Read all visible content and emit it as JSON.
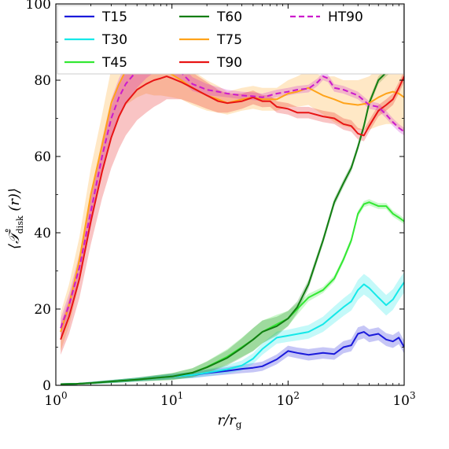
{
  "chart_data": {
    "type": "line",
    "xscale": "log",
    "xlim": [
      1,
      1000
    ],
    "ylim": [
      0,
      100
    ],
    "x_ticks": [
      1,
      10,
      100,
      1000
    ],
    "x_tick_labels": [
      {
        "base": "10",
        "exp": "0"
      },
      {
        "base": "10",
        "exp": "1"
      },
      {
        "base": "10",
        "exp": "2"
      },
      {
        "base": "10",
        "exp": "3"
      }
    ],
    "y_ticks": [
      0,
      20,
      40,
      60,
      80,
      100
    ],
    "y_tick_labels": [
      "0",
      "20",
      "40",
      "60",
      "80",
      "100"
    ],
    "xlabel": {
      "main": "r/r",
      "sub": "g"
    },
    "ylabel": {
      "main": "⟨𝒯",
      "sup": "°",
      "sub": "disk",
      "tail": " (r)⟩"
    },
    "legend_position": "top",
    "grid": false,
    "series": [
      {
        "name": "T15",
        "color": "#1a1adb",
        "dash": false,
        "band": true,
        "x": [
          1.1,
          1.5,
          2,
          3,
          5,
          7,
          10,
          15,
          20,
          30,
          40,
          50,
          60,
          80,
          100,
          120,
          150,
          200,
          250,
          300,
          350,
          400,
          450,
          500,
          600,
          700,
          800,
          900,
          1000
        ],
        "y": [
          0.3,
          0.4,
          0.6,
          1.0,
          1.5,
          1.9,
          2.3,
          2.7,
          3.2,
          3.8,
          4.3,
          4.6,
          5.0,
          6.8,
          9.0,
          8.5,
          8.0,
          8.5,
          8.2,
          10.0,
          10.5,
          13.5,
          14.0,
          13.0,
          13.5,
          12.0,
          11.5,
          12.5,
          10.0
        ],
        "band_width": [
          0.2,
          0.2,
          0.3,
          0.4,
          0.5,
          0.6,
          0.7,
          0.8,
          0.9,
          1.0,
          1.1,
          1.2,
          1.2,
          1.3,
          1.4,
          1.4,
          1.5,
          1.5,
          1.5,
          1.6,
          1.6,
          1.7,
          1.7,
          1.7,
          1.7,
          1.7,
          1.7,
          1.7,
          1.7
        ]
      },
      {
        "name": "T30",
        "color": "#15e8e8",
        "dash": false,
        "band": true,
        "x": [
          1.1,
          1.5,
          2,
          3,
          5,
          7,
          10,
          15,
          20,
          30,
          40,
          50,
          60,
          80,
          100,
          150,
          200,
          250,
          300,
          350,
          400,
          450,
          500,
          600,
          700,
          800,
          900,
          1000
        ],
        "y": [
          0.3,
          0.4,
          0.6,
          1.0,
          1.5,
          1.9,
          2.3,
          2.7,
          3.3,
          4.2,
          5.2,
          7.0,
          9.5,
          12.5,
          13.0,
          14.0,
          16.0,
          18.5,
          20.5,
          22.0,
          25.0,
          26.5,
          25.5,
          23.0,
          21.0,
          22.5,
          25.0,
          27.0
        ],
        "band_width": [
          0.2,
          0.2,
          0.3,
          0.4,
          0.5,
          0.6,
          0.7,
          0.8,
          0.9,
          1.1,
          1.3,
          1.4,
          1.5,
          1.6,
          1.6,
          1.8,
          2.0,
          2.2,
          2.3,
          2.4,
          2.6,
          2.7,
          2.7,
          2.7,
          2.7,
          2.7,
          2.7,
          2.7
        ]
      },
      {
        "name": "T45",
        "color": "#33e833",
        "dash": false,
        "band": true,
        "x": [
          1.1,
          1.5,
          2,
          3,
          5,
          7,
          10,
          15,
          20,
          30,
          40,
          50,
          60,
          80,
          100,
          120,
          150,
          200,
          250,
          300,
          350,
          400,
          450,
          500,
          600,
          700,
          800,
          900,
          1000
        ],
        "y": [
          0.3,
          0.4,
          0.6,
          1.0,
          1.5,
          1.9,
          2.3,
          3.3,
          4.8,
          7.5,
          10.0,
          12.0,
          14.0,
          16.0,
          17.5,
          20.0,
          23.0,
          25.0,
          28.0,
          33.0,
          38.0,
          45.0,
          47.5,
          48.0,
          47.0,
          47.0,
          45.0,
          44.0,
          43.0
        ],
        "band_width": [
          0.2,
          0.2,
          0.3,
          0.4,
          0.5,
          0.7,
          0.9,
          1.2,
          1.5,
          2.0,
          2.5,
          3.0,
          3.0,
          2.5,
          2.0,
          1.5,
          1.0,
          0.8,
          0.8,
          0.8,
          0.8,
          0.8,
          0.8,
          0.8,
          0.8,
          0.8,
          0.8,
          0.8,
          0.8
        ]
      },
      {
        "name": "T60",
        "color": "#137e13",
        "dash": false,
        "band": true,
        "x": [
          1.1,
          1.5,
          2,
          3,
          5,
          7,
          10,
          15,
          20,
          30,
          40,
          50,
          60,
          80,
          100,
          120,
          150,
          200,
          250,
          300,
          350,
          400,
          450,
          500,
          600,
          700,
          800,
          900,
          1000
        ],
        "y": [
          0.3,
          0.4,
          0.6,
          1.0,
          1.5,
          1.9,
          2.3,
          3.3,
          4.7,
          7.2,
          9.8,
          12.0,
          14.0,
          15.5,
          17.5,
          20.5,
          26.5,
          38.0,
          48.0,
          53.0,
          57.0,
          62.5,
          68.0,
          74.0,
          80.0,
          82.0,
          83.5,
          85.5,
          86.0
        ],
        "band_width": [
          0.2,
          0.2,
          0.3,
          0.4,
          0.5,
          0.7,
          0.9,
          1.2,
          1.5,
          2.0,
          2.5,
          3.0,
          3.0,
          2.5,
          2.0,
          1.5,
          1.2,
          1.0,
          1.0,
          1.0,
          1.0,
          1.0,
          1.0,
          1.0,
          1.0,
          1.0,
          1.0,
          1.0,
          1.0
        ]
      },
      {
        "name": "T75",
        "color": "#ffa31a",
        "dash": false,
        "band": true,
        "x": [
          1.1,
          1.3,
          1.6,
          2,
          2.5,
          3,
          3.5,
          4,
          5,
          6,
          7,
          8,
          10,
          12,
          15,
          20,
          25,
          30,
          40,
          50,
          60,
          80,
          100,
          120,
          150,
          200,
          250,
          300,
          400,
          500,
          600,
          700,
          800,
          900,
          1000
        ],
        "y": [
          14.0,
          21.0,
          33.0,
          50.0,
          63.0,
          74.0,
          79.0,
          82.5,
          84.5,
          85.0,
          84.0,
          83.0,
          81.5,
          80.0,
          78.0,
          76.0,
          75.0,
          74.0,
          75.0,
          75.5,
          75.0,
          75.0,
          76.5,
          77.0,
          78.0,
          76.0,
          75.0,
          74.0,
          73.5,
          74.0,
          75.5,
          76.5,
          77.0,
          76.5,
          75.5
        ],
        "band_width": [
          5,
          5.5,
          6,
          7,
          8,
          9,
          9,
          9,
          9,
          8.5,
          8,
          7,
          6,
          5,
          4.5,
          4,
          3.5,
          3,
          3,
          3,
          3,
          3,
          3.5,
          4,
          4.5,
          5,
          6,
          6,
          6.5,
          7,
          7.5,
          8,
          8.5,
          9,
          9
        ]
      },
      {
        "name": "T90",
        "color": "#e81414",
        "dash": false,
        "band": true,
        "x": [
          1.1,
          1.3,
          1.6,
          2,
          2.5,
          3,
          3.5,
          4,
          5,
          6,
          7,
          8,
          9,
          10,
          12,
          15,
          20,
          25,
          30,
          40,
          50,
          60,
          70,
          80,
          100,
          120,
          150,
          200,
          250,
          300,
          350,
          400,
          450,
          500,
          600,
          700,
          800,
          900,
          1000
        ],
        "y": [
          12.0,
          18.0,
          28.0,
          43.0,
          56.0,
          65.0,
          70.5,
          74.0,
          77.5,
          79.0,
          80.0,
          80.5,
          81.0,
          80.5,
          79.5,
          78.0,
          76.0,
          74.5,
          74.0,
          74.5,
          75.5,
          74.5,
          74.5,
          73.0,
          72.5,
          71.5,
          71.5,
          70.5,
          70.0,
          68.5,
          68.0,
          66.0,
          65.5,
          68.0,
          72.0,
          73.5,
          75.0,
          78.0,
          81.0
        ],
        "band_width": [
          4,
          4.5,
          5,
          6,
          7,
          8,
          8.5,
          8.5,
          8,
          7.5,
          7,
          6.5,
          6,
          5.5,
          4.5,
          4,
          3.5,
          3,
          2.5,
          2,
          1.8,
          1.6,
          1.5,
          1.5,
          1.5,
          1.5,
          1.5,
          1.5,
          1.5,
          1.5,
          1.5,
          1.5,
          1.5,
          1.5,
          1.5,
          1.5,
          1.5,
          1.5,
          1.5
        ]
      },
      {
        "name": "HT90",
        "color": "#cc1acc",
        "dash": true,
        "band": true,
        "x": [
          1.1,
          1.3,
          1.6,
          2,
          2.5,
          3,
          3.5,
          4,
          5,
          6,
          7,
          8,
          10,
          12,
          15,
          20,
          25,
          30,
          40,
          50,
          60,
          80,
          100,
          120,
          150,
          180,
          200,
          220,
          250,
          300,
          400,
          500,
          600,
          700,
          800,
          900,
          1000
        ],
        "y": [
          15.0,
          21.0,
          31.0,
          45.5,
          60.0,
          70.0,
          75.5,
          79.0,
          82.5,
          84.5,
          85.5,
          85.3,
          84.0,
          82.0,
          79.0,
          77.5,
          77.0,
          76.5,
          76.0,
          75.8,
          75.5,
          76.5,
          77.0,
          77.5,
          77.8,
          79.5,
          81.0,
          80.5,
          78.0,
          77.5,
          76.0,
          73.5,
          73.0,
          71.0,
          69.0,
          67.5,
          66.5
        ],
        "band_width": [
          2.5,
          3,
          3.5,
          4,
          4.5,
          5,
          5,
          5,
          4.5,
          4,
          3.5,
          3,
          2.5,
          2,
          1.8,
          1.5,
          1.2,
          1,
          1,
          1,
          1,
          1,
          1,
          1,
          1,
          1,
          1,
          1,
          1,
          1,
          1,
          1,
          1,
          1,
          1,
          1,
          1
        ]
      }
    ]
  }
}
